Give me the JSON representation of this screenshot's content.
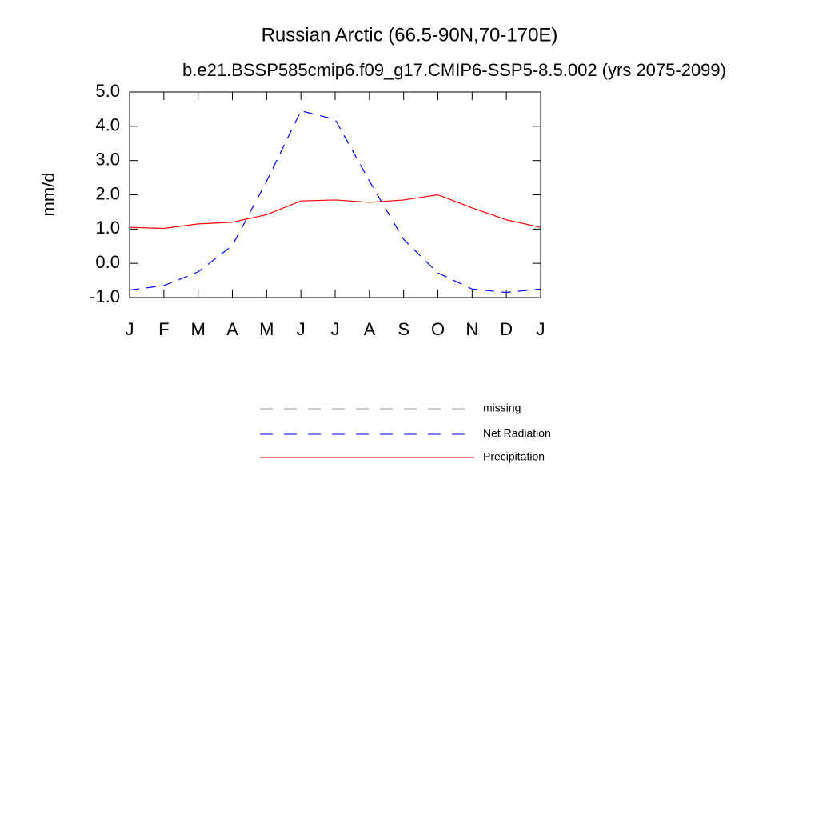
{
  "chart_data": {
    "type": "line",
    "title": "Russian Arctic (66.5-90N,70-170E)",
    "subtitle": "b.e21.BSSP585cmip6.f09_g17.CMIP6-SSP5-8.5.002 (yrs 2075-2099)",
    "y_label": "mm/d",
    "categories": [
      "J",
      "F",
      "M",
      "A",
      "M",
      "J",
      "J",
      "A",
      "S",
      "O",
      "N",
      "D",
      "J"
    ],
    "ylim": [
      -1,
      5
    ],
    "yticks": [
      {
        "value": -1,
        "label": "-1.0"
      },
      {
        "value": 0,
        "label": "0.0"
      },
      {
        "value": 1,
        "label": "1.0"
      },
      {
        "value": 2,
        "label": "2.0"
      },
      {
        "value": 3,
        "label": "3.0"
      },
      {
        "value": 4,
        "label": "4.0"
      },
      {
        "value": 5,
        "label": "5.0"
      }
    ],
    "series": [
      {
        "name": "missing",
        "color": "#999999",
        "style": "dashed",
        "values": [
          null,
          null,
          null,
          null,
          null,
          null,
          null,
          null,
          null,
          null,
          null,
          null,
          null
        ]
      },
      {
        "name": "Net Radiation",
        "color": "#0000ff",
        "style": "dashed",
        "values": [
          -0.78,
          -0.65,
          -0.25,
          0.52,
          2.4,
          4.45,
          4.2,
          2.4,
          0.7,
          -0.28,
          -0.75,
          -0.85,
          -0.75
        ]
      },
      {
        "name": "Precipitation",
        "color": "#ff0000",
        "style": "solid",
        "values": [
          1.05,
          1.02,
          1.15,
          1.2,
          1.42,
          1.82,
          1.85,
          1.78,
          1.85,
          2.0,
          1.62,
          1.27,
          1.05
        ]
      }
    ]
  }
}
